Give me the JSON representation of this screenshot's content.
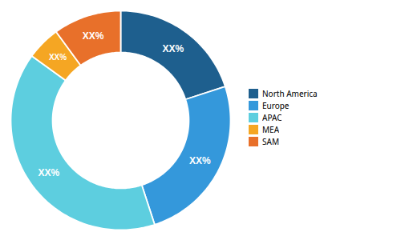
{
  "chart_data": {
    "type": "donut",
    "categories": [
      "North America",
      "Europe",
      "APAC",
      "MEA",
      "SAM"
    ],
    "values": [
      20,
      25,
      40,
      5,
      10
    ],
    "value_labels": [
      "XX%",
      "XX%",
      "XX%",
      "XX%",
      "XX%"
    ],
    "colors": [
      "#1e5f8e",
      "#3498db",
      "#5dcedf",
      "#f5a623",
      "#e8702a"
    ],
    "data_labels": true,
    "legend": "right"
  }
}
